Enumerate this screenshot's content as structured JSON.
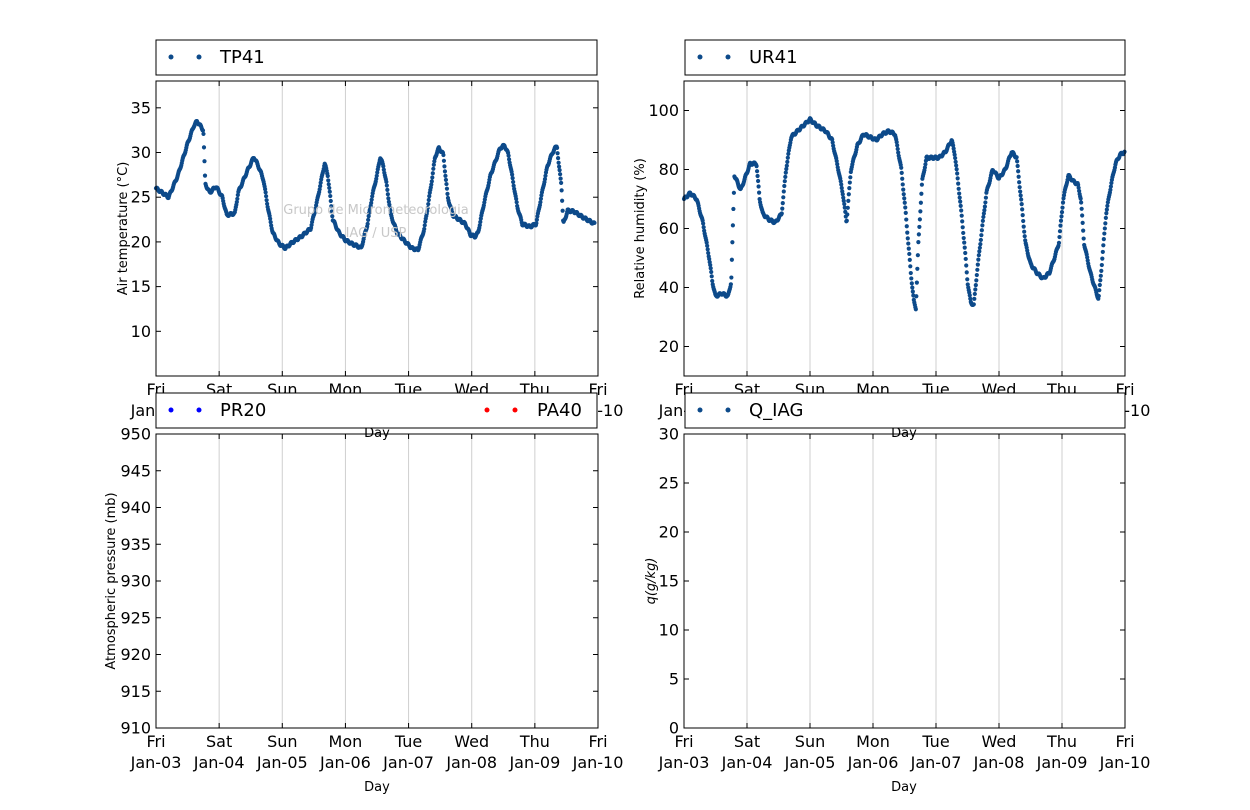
{
  "colors": {
    "series": "#0d4a8a",
    "pr20": "#0000ff",
    "pa40": "#ff0000",
    "grid": "#cfcfcf",
    "watermark": "#c8c8c8"
  },
  "x_ticks": {
    "days": [
      "Fri",
      "Sat",
      "Sun",
      "Mon",
      "Tue",
      "Wed",
      "Thu",
      "Fri"
    ],
    "dates": [
      "Jan-03",
      "Jan-04",
      "Jan-05",
      "Jan-06",
      "Jan-07",
      "Jan-08",
      "Jan-09",
      "Jan-10"
    ]
  },
  "watermark": {
    "line1": "Grupo de Micrometeorologia",
    "line2": "IAG / USP"
  },
  "chart_data": [
    {
      "id": "tp41",
      "type": "scatter",
      "xlabel": "Day",
      "ylabel": "Air temperature (°C)",
      "xlim": [
        0,
        7
      ],
      "ylim": [
        5,
        38
      ],
      "yticks": [
        10,
        15,
        20,
        25,
        30,
        35
      ],
      "series": [
        {
          "name": "TP41",
          "color": "#0d4a8a"
        }
      ],
      "keypoints": [
        [
          0.0,
          26.0
        ],
        [
          0.1,
          25.5
        ],
        [
          0.2,
          25.0
        ],
        [
          0.35,
          27.5
        ],
        [
          0.5,
          31.0
        ],
        [
          0.6,
          33.0
        ],
        [
          0.65,
          33.5
        ],
        [
          0.75,
          32.5
        ],
        [
          0.78,
          26.5
        ],
        [
          0.85,
          25.5
        ],
        [
          0.95,
          26.2
        ],
        [
          1.05,
          25.0
        ],
        [
          1.12,
          23.0
        ],
        [
          1.25,
          23.2
        ],
        [
          1.3,
          25.5
        ],
        [
          1.45,
          28.0
        ],
        [
          1.55,
          29.5
        ],
        [
          1.62,
          28.5
        ],
        [
          1.7,
          27.0
        ],
        [
          1.78,
          23.5
        ],
        [
          1.85,
          21.0
        ],
        [
          1.95,
          19.8
        ],
        [
          2.05,
          19.3
        ],
        [
          2.15,
          19.9
        ],
        [
          2.3,
          20.6
        ],
        [
          2.45,
          21.5
        ],
        [
          2.55,
          24.5
        ],
        [
          2.62,
          27.0
        ],
        [
          2.67,
          28.8
        ],
        [
          2.72,
          27.5
        ],
        [
          2.8,
          22.5
        ],
        [
          2.9,
          21.0
        ],
        [
          3.0,
          20.2
        ],
        [
          3.1,
          19.8
        ],
        [
          3.2,
          19.5
        ],
        [
          3.25,
          19.3
        ],
        [
          3.35,
          22.0
        ],
        [
          3.42,
          25.0
        ],
        [
          3.5,
          27.5
        ],
        [
          3.55,
          29.5
        ],
        [
          3.6,
          28.5
        ],
        [
          3.65,
          26.5
        ],
        [
          3.72,
          23.0
        ],
        [
          3.82,
          21.0
        ],
        [
          3.95,
          20.0
        ],
        [
          4.05,
          19.3
        ],
        [
          4.15,
          19.1
        ],
        [
          4.25,
          21.5
        ],
        [
          4.35,
          26.0
        ],
        [
          4.42,
          29.5
        ],
        [
          4.48,
          30.5
        ],
        [
          4.55,
          29.8
        ],
        [
          4.62,
          25.0
        ],
        [
          4.7,
          23.0
        ],
        [
          4.8,
          22.5
        ],
        [
          4.9,
          22.0
        ],
        [
          4.98,
          20.8
        ],
        [
          5.05,
          20.6
        ],
        [
          5.1,
          21.0
        ],
        [
          5.2,
          24.5
        ],
        [
          5.3,
          27.5
        ],
        [
          5.4,
          29.5
        ],
        [
          5.45,
          30.5
        ],
        [
          5.52,
          30.8
        ],
        [
          5.58,
          29.8
        ],
        [
          5.65,
          27.0
        ],
        [
          5.72,
          24.0
        ],
        [
          5.8,
          22.0
        ],
        [
          5.92,
          21.7
        ],
        [
          6.02,
          22.0
        ],
        [
          6.1,
          25.0
        ],
        [
          6.2,
          28.5
        ],
        [
          6.28,
          30.0
        ],
        [
          6.35,
          30.8
        ],
        [
          6.38,
          28.5
        ],
        [
          6.42,
          26.5
        ],
        [
          6.45,
          22.0
        ],
        [
          6.52,
          23.5
        ],
        [
          6.62,
          23.4
        ],
        [
          6.75,
          22.8
        ],
        [
          6.95,
          22.0
        ]
      ]
    },
    {
      "id": "ur41",
      "type": "scatter",
      "xlabel": "Day",
      "ylabel": "Relative humidity (%)",
      "xlim": [
        0,
        7
      ],
      "ylim": [
        10,
        110
      ],
      "yticks": [
        20,
        40,
        60,
        80,
        100
      ],
      "series": [
        {
          "name": "UR41",
          "color": "#0d4a8a"
        }
      ],
      "keypoints": [
        [
          0.0,
          70.0
        ],
        [
          0.1,
          72.0
        ],
        [
          0.2,
          70.0
        ],
        [
          0.3,
          62.0
        ],
        [
          0.4,
          50.0
        ],
        [
          0.45,
          42.0
        ],
        [
          0.5,
          37.0
        ],
        [
          0.6,
          38.0
        ],
        [
          0.7,
          37.0
        ],
        [
          0.75,
          42.0
        ],
        [
          0.8,
          78.0
        ],
        [
          0.9,
          73.0
        ],
        [
          0.95,
          76.0
        ],
        [
          1.05,
          82.0
        ],
        [
          1.15,
          82.0
        ],
        [
          1.2,
          70.0
        ],
        [
          1.25,
          65.0
        ],
        [
          1.35,
          63.0
        ],
        [
          1.45,
          62.0
        ],
        [
          1.55,
          65.0
        ],
        [
          1.62,
          80.0
        ],
        [
          1.7,
          91.0
        ],
        [
          1.8,
          93.0
        ],
        [
          1.9,
          95.0
        ],
        [
          2.0,
          97.0
        ],
        [
          2.1,
          95.0
        ],
        [
          2.25,
          93.0
        ],
        [
          2.35,
          90.0
        ],
        [
          2.45,
          80.0
        ],
        [
          2.52,
          72.0
        ],
        [
          2.58,
          62.0
        ],
        [
          2.65,
          80.0
        ],
        [
          2.75,
          88.0
        ],
        [
          2.85,
          92.0
        ],
        [
          2.95,
          91.0
        ],
        [
          3.05,
          90.0
        ],
        [
          3.15,
          92.0
        ],
        [
          3.25,
          93.0
        ],
        [
          3.35,
          92.0
        ],
        [
          3.45,
          80.0
        ],
        [
          3.52,
          65.0
        ],
        [
          3.6,
          45.0
        ],
        [
          3.65,
          35.0
        ],
        [
          3.68,
          33.0
        ],
        [
          3.72,
          55.0
        ],
        [
          3.78,
          76.0
        ],
        [
          3.85,
          84.0
        ],
        [
          3.95,
          84.0
        ],
        [
          4.05,
          84.0
        ],
        [
          4.15,
          86.0
        ],
        [
          4.25,
          90.0
        ],
        [
          4.3,
          85.0
        ],
        [
          4.38,
          70.0
        ],
        [
          4.45,
          55.0
        ],
        [
          4.5,
          42.0
        ],
        [
          4.55,
          35.0
        ],
        [
          4.6,
          34.0
        ],
        [
          4.65,
          45.0
        ],
        [
          4.72,
          58.0
        ],
        [
          4.8,
          72.0
        ],
        [
          4.9,
          80.0
        ],
        [
          5.0,
          77.0
        ],
        [
          5.1,
          80.0
        ],
        [
          5.2,
          86.0
        ],
        [
          5.28,
          84.0
        ],
        [
          5.35,
          70.0
        ],
        [
          5.42,
          55.0
        ],
        [
          5.5,
          48.0
        ],
        [
          5.6,
          45.0
        ],
        [
          5.7,
          43.0
        ],
        [
          5.8,
          45.0
        ],
        [
          5.88,
          50.0
        ],
        [
          5.95,
          55.0
        ],
        [
          6.02,
          70.0
        ],
        [
          6.1,
          78.0
        ],
        [
          6.18,
          76.0
        ],
        [
          6.25,
          75.0
        ],
        [
          6.3,
          70.0
        ],
        [
          6.35,
          55.0
        ],
        [
          6.45,
          45.0
        ],
        [
          6.52,
          40.0
        ],
        [
          6.58,
          36.0
        ],
        [
          6.62,
          45.0
        ],
        [
          6.7,
          65.0
        ],
        [
          6.78,
          75.0
        ],
        [
          6.85,
          82.0
        ],
        [
          6.92,
          85.0
        ],
        [
          7.0,
          86.0
        ]
      ]
    },
    {
      "id": "pressure",
      "type": "scatter",
      "xlabel": "Day",
      "ylabel": "Atmospheric pressure (mb)",
      "xlim": [
        0,
        7
      ],
      "ylim": [
        910,
        950
      ],
      "yticks": [
        910,
        915,
        920,
        925,
        930,
        935,
        940,
        945,
        950
      ],
      "series": [
        {
          "name": "PR20",
          "color": "#0000ff",
          "values": []
        },
        {
          "name": "PA40",
          "color": "#ff0000",
          "values": []
        }
      ]
    },
    {
      "id": "qiag",
      "type": "scatter",
      "xlabel": "Day",
      "ylabel": "q(g/kg)",
      "xlim": [
        0,
        7
      ],
      "ylim": [
        0,
        30
      ],
      "yticks": [
        0,
        5,
        10,
        15,
        20,
        25,
        30
      ],
      "series": [
        {
          "name": "Q_IAG",
          "color": "#0d4a8a",
          "values": []
        }
      ]
    }
  ]
}
